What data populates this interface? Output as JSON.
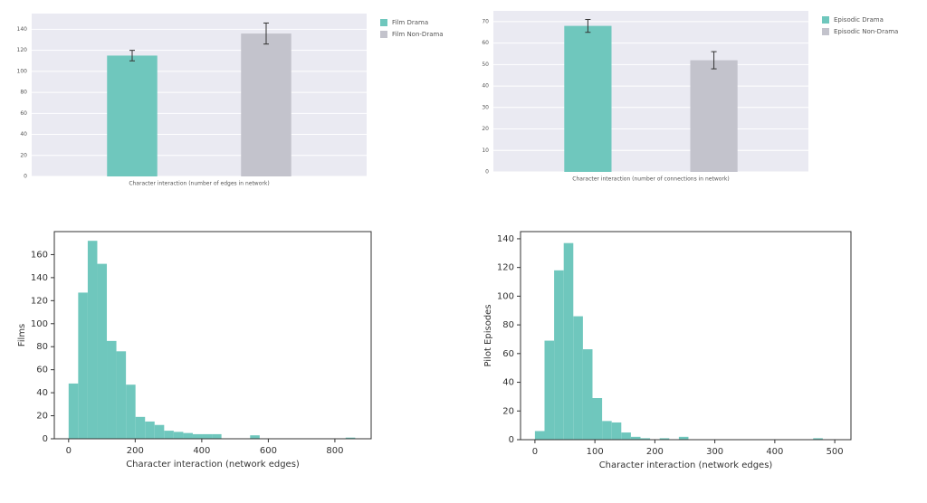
{
  "chart_data": [
    {
      "type": "bar",
      "xlabel": "Character interaction (number of edges in network)",
      "ylim": [
        0,
        155
      ],
      "yticks": [
        0,
        20,
        40,
        60,
        80,
        100,
        120,
        140
      ],
      "grid": true,
      "legend": "outside right",
      "series": [
        {
          "name": "Film Drama",
          "color": "#6fc7bd",
          "values": [
            115
          ],
          "errors": [
            5
          ]
        },
        {
          "name": "Film Non-Drama",
          "color": "#c3c3cc",
          "values": [
            136
          ],
          "errors": [
            10
          ]
        }
      ]
    },
    {
      "type": "bar",
      "xlabel": "Character interaction (number of connections in network)",
      "ylim": [
        0,
        75
      ],
      "yticks": [
        0,
        10,
        20,
        30,
        40,
        50,
        60,
        70
      ],
      "grid": true,
      "legend": "outside right",
      "series": [
        {
          "name": "Episodic Drama",
          "color": "#6fc7bd",
          "values": [
            68
          ],
          "errors": [
            3
          ]
        },
        {
          "name": "Episodic Non-Drama",
          "color": "#c3c3cc",
          "values": [
            52
          ],
          "errors": [
            4
          ]
        }
      ]
    },
    {
      "type": "histogram",
      "xlabel": "Character interaction (network edges)",
      "ylabel": "Films",
      "color": "#6fc7bd",
      "xlim": [
        -43,
        909
      ],
      "xticks": [
        0,
        200,
        400,
        600,
        800
      ],
      "ylim": [
        0,
        180
      ],
      "yticks": [
        0,
        20,
        40,
        60,
        80,
        100,
        120,
        140,
        160
      ],
      "bins": [
        0,
        28.7,
        57.4,
        86.1,
        114.8,
        143.5,
        172.2,
        200.9,
        229.6,
        258.3,
        287,
        315.7,
        344.4,
        373.1,
        401.8,
        430.5,
        459.2,
        487.9,
        516.6,
        545.3,
        574,
        602.7,
        631.4,
        660.1,
        688.8,
        717.5,
        746.2,
        774.9,
        803.6,
        832.3,
        861
      ],
      "counts": [
        48,
        127,
        172,
        152,
        85,
        76,
        47,
        19,
        15,
        12,
        7,
        6,
        5,
        4,
        4,
        4,
        0,
        0,
        0,
        3,
        0,
        0,
        0,
        0,
        0,
        0,
        0,
        0,
        0,
        1
      ]
    },
    {
      "type": "histogram",
      "xlabel": "Character interaction (network edges)",
      "ylabel": "Pilot Episodes",
      "color": "#6fc7bd",
      "xlim": [
        -24,
        527
      ],
      "xticks": [
        0,
        100,
        200,
        300,
        400,
        500
      ],
      "ylim": [
        0,
        145
      ],
      "yticks": [
        0,
        20,
        40,
        60,
        80,
        100,
        120,
        140
      ],
      "bins": [
        0,
        16,
        32,
        48,
        64,
        80,
        96,
        112,
        128,
        144,
        160,
        176,
        192,
        208,
        224,
        240,
        256,
        272,
        288,
        304,
        320,
        336,
        352,
        368,
        384,
        400,
        416,
        432,
        448,
        464,
        480
      ],
      "counts": [
        6,
        69,
        118,
        137,
        86,
        63,
        29,
        13,
        12,
        5,
        2,
        1,
        0,
        1,
        0,
        2,
        0,
        0,
        0,
        0,
        0,
        0,
        0,
        0,
        0,
        0,
        0,
        0,
        0,
        1
      ]
    }
  ]
}
